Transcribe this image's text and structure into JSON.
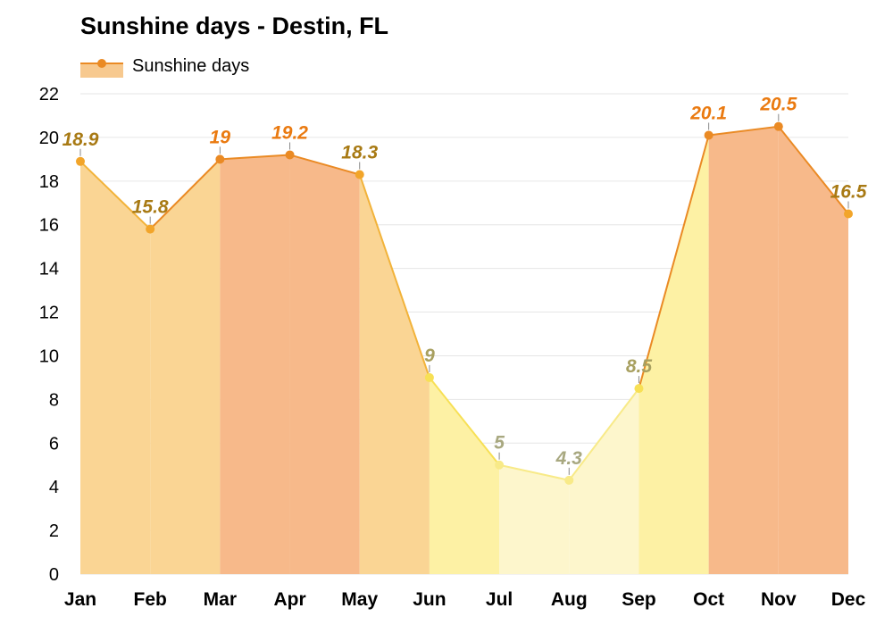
{
  "chart_data": {
    "type": "area",
    "title": "Sunshine days - Destin, FL",
    "xlabel": "",
    "ylabel": "",
    "categories": [
      "Jan",
      "Feb",
      "Mar",
      "Apr",
      "May",
      "Jun",
      "Jul",
      "Aug",
      "Sep",
      "Oct",
      "Nov",
      "Dec"
    ],
    "series": [
      {
        "name": "Sunshine days",
        "values": [
          18.9,
          15.8,
          19,
          19.2,
          18.3,
          9,
          5,
          4.3,
          8.5,
          20.1,
          20.5,
          16.5
        ],
        "labels": [
          "18.9",
          "15.8",
          "19",
          "19.2",
          "18.3",
          "9",
          "5",
          "4.3",
          "8.5",
          "20.1",
          "20.5",
          "16.5"
        ]
      }
    ],
    "ylim": [
      0,
      22
    ],
    "yticks": [
      "0",
      "2",
      "4",
      "6",
      "8",
      "10",
      "12",
      "14",
      "16",
      "18",
      "20",
      "22"
    ],
    "grid": true,
    "legend_position": "top-left",
    "colors": {
      "line": "#ea8a24",
      "legend_fill": "#f7c98f",
      "gridline": "#e6e6e6"
    }
  }
}
